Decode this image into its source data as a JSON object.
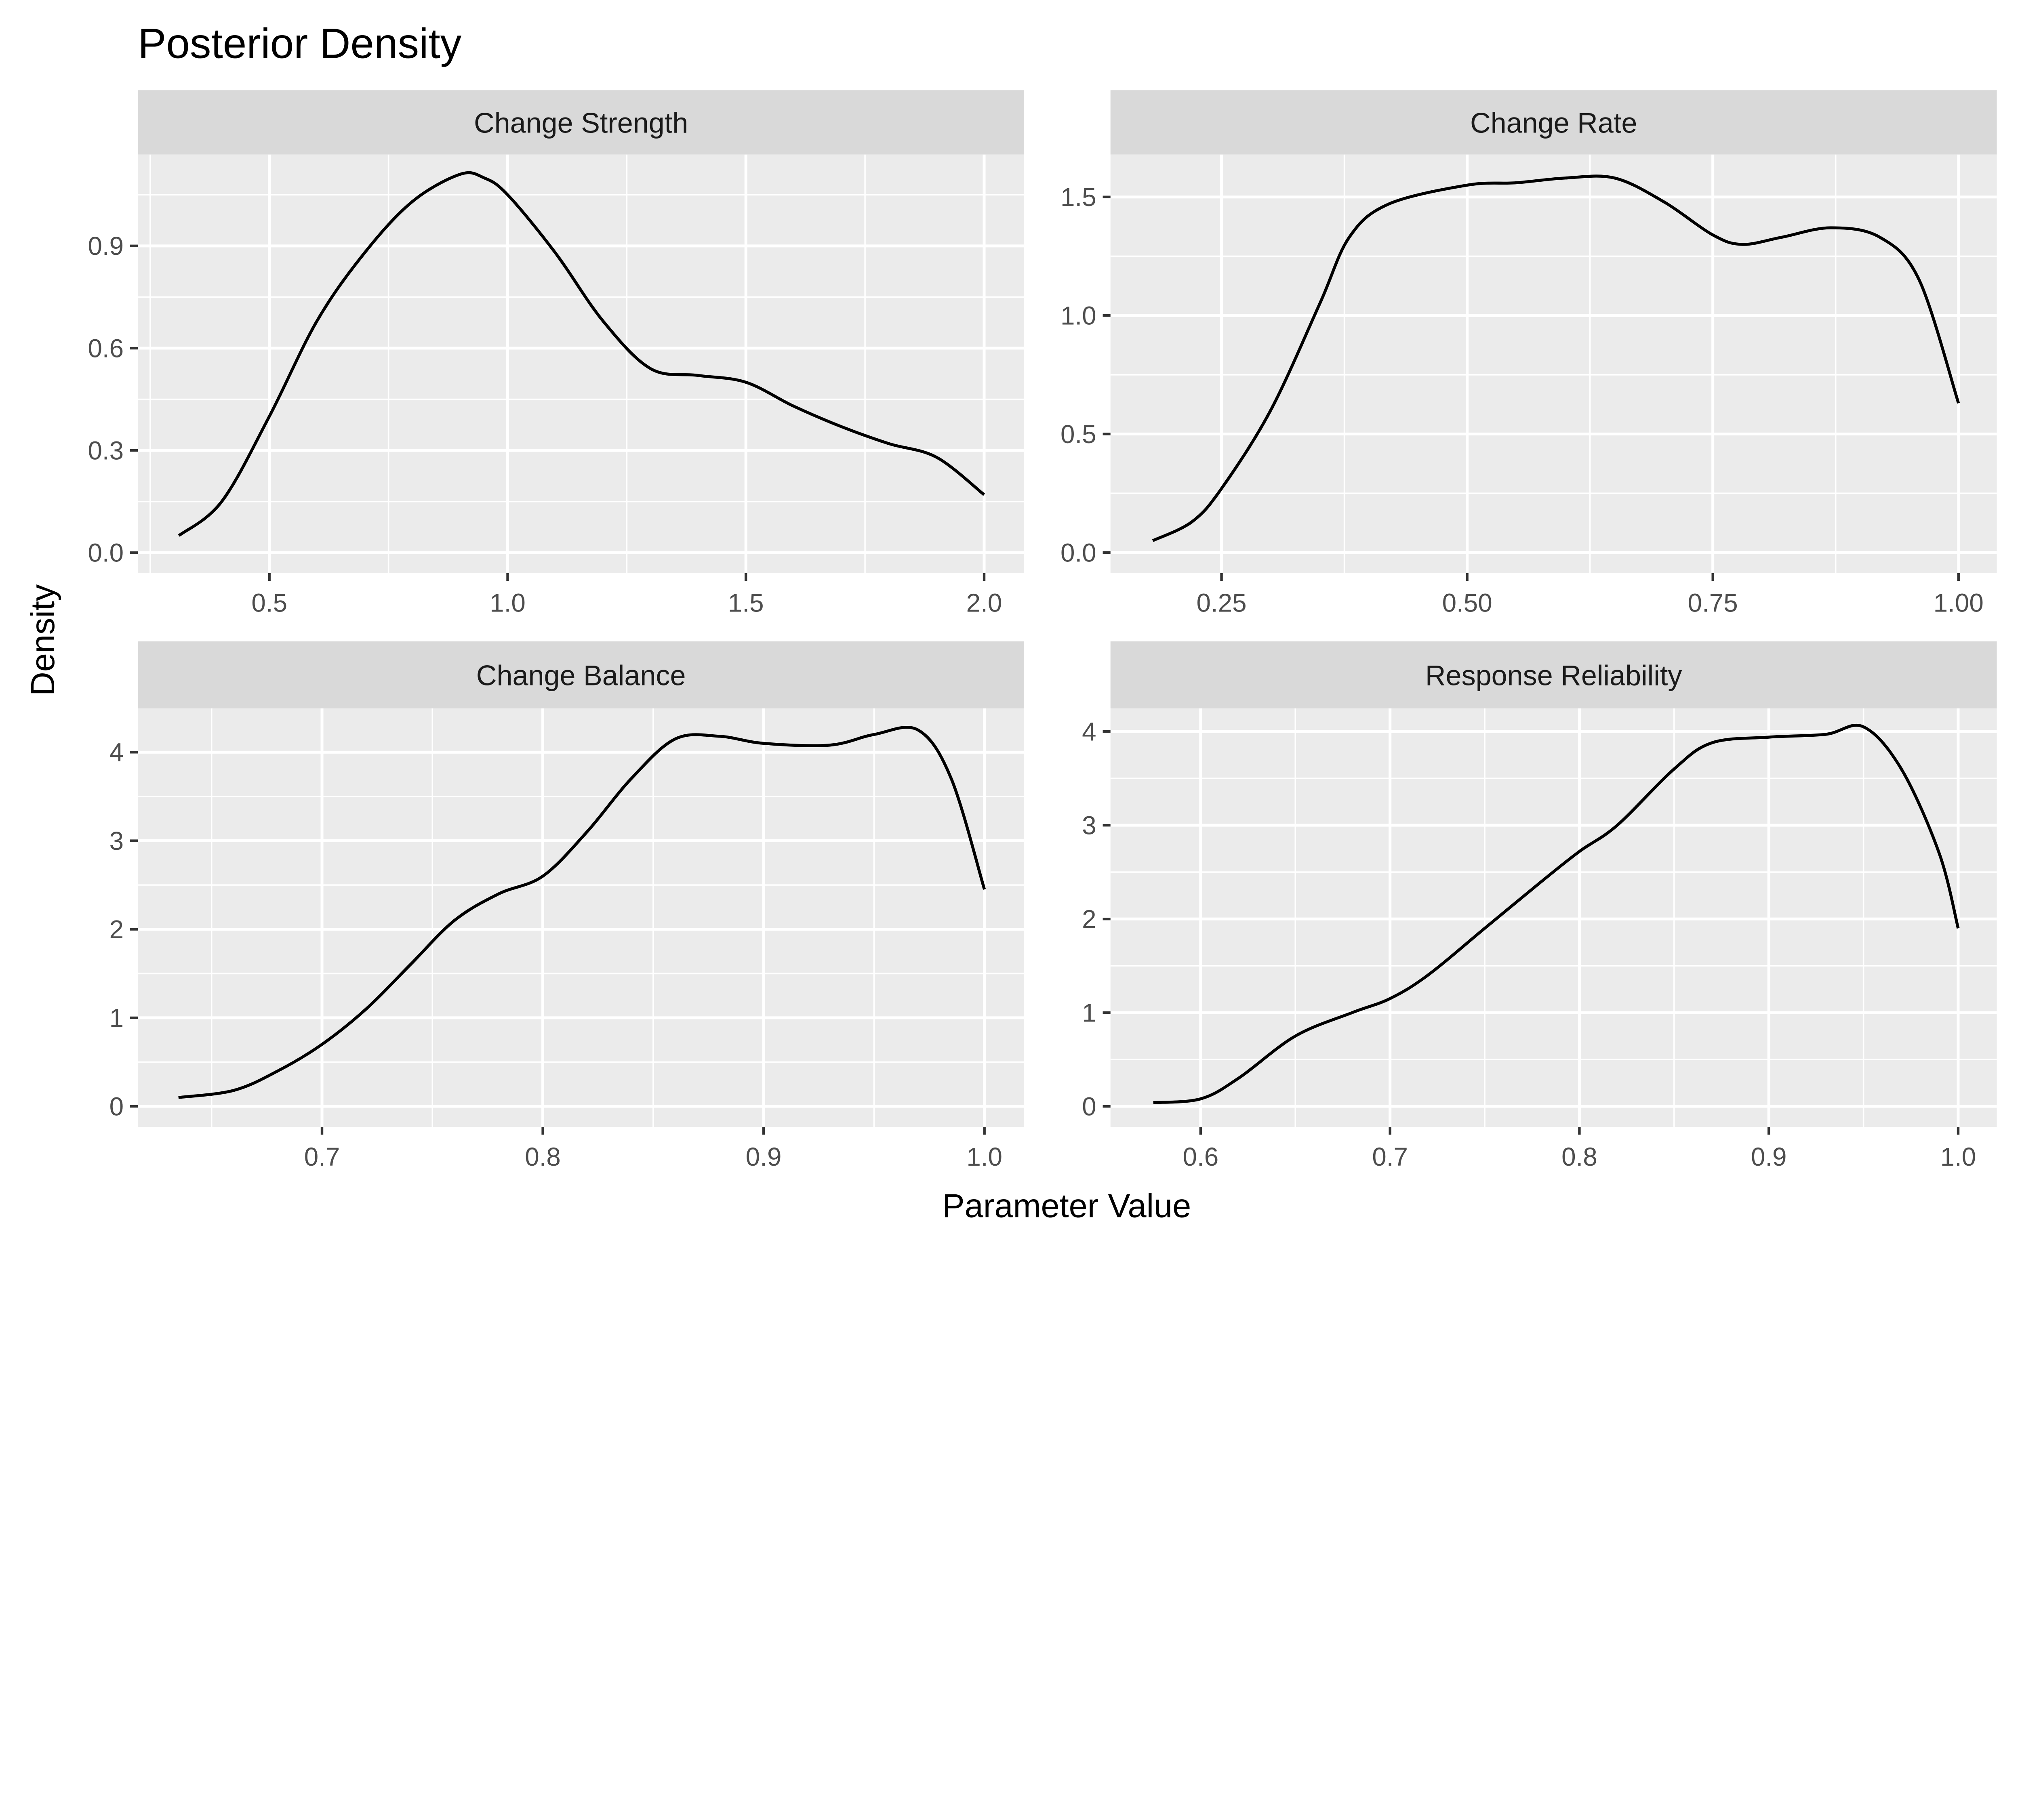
{
  "chart_data": {
    "title": "Posterior Density",
    "xlabel": "Parameter Value",
    "ylabel": "Density",
    "grid": true,
    "panels": [
      {
        "type": "line",
        "strip": "Change Strength",
        "xlim": [
          0.224,
          2.084
        ],
        "ylim": [
          -0.06,
          1.168
        ],
        "xticks": [
          0.5,
          1.0,
          1.5,
          2.0
        ],
        "xtick_labels": [
          "0.5",
          "1.0",
          "1.5",
          "2.0"
        ],
        "yticks": [
          0.0,
          0.3,
          0.6,
          0.9
        ],
        "ytick_labels": [
          "0.0",
          "0.3",
          "0.6",
          "0.9"
        ],
        "x": [
          0.31,
          0.4,
          0.5,
          0.6,
          0.7,
          0.8,
          0.9,
          0.95,
          1.0,
          1.1,
          1.2,
          1.3,
          1.4,
          1.5,
          1.6,
          1.7,
          1.8,
          1.9,
          2.0
        ],
        "y": [
          0.05,
          0.15,
          0.4,
          0.68,
          0.88,
          1.03,
          1.11,
          1.1,
          1.05,
          0.88,
          0.68,
          0.54,
          0.52,
          0.5,
          0.43,
          0.37,
          0.32,
          0.28,
          0.17
        ]
      },
      {
        "type": "line",
        "strip": "Change Rate",
        "xlim": [
          0.137,
          1.039
        ],
        "ylim": [
          -0.087,
          1.679
        ],
        "xticks": [
          0.25,
          0.5,
          0.75,
          1.0
        ],
        "xtick_labels": [
          "0.25",
          "0.50",
          "0.75",
          "1.00"
        ],
        "yticks": [
          0.0,
          0.5,
          1.0,
          1.5
        ],
        "ytick_labels": [
          "0.0",
          "0.5",
          "1.0",
          "1.5"
        ],
        "x": [
          0.18,
          0.22,
          0.25,
          0.3,
          0.35,
          0.38,
          0.42,
          0.5,
          0.55,
          0.6,
          0.65,
          0.7,
          0.75,
          0.78,
          0.82,
          0.87,
          0.92,
          0.96,
          1.0
        ],
        "y": [
          0.05,
          0.13,
          0.27,
          0.6,
          1.05,
          1.33,
          1.47,
          1.55,
          1.56,
          1.58,
          1.58,
          1.48,
          1.34,
          1.3,
          1.33,
          1.37,
          1.33,
          1.15,
          0.63
        ]
      },
      {
        "type": "line",
        "strip": "Change Balance",
        "xlim": [
          0.6166,
          1.018
        ],
        "ylim": [
          -0.233,
          4.495
        ],
        "xticks": [
          0.7,
          0.8,
          0.9,
          1.0
        ],
        "xtick_labels": [
          "0.7",
          "0.8",
          "0.9",
          "1.0"
        ],
        "yticks": [
          0,
          1,
          2,
          3,
          4
        ],
        "ytick_labels": [
          "0",
          "1",
          "2",
          "3",
          "4"
        ],
        "x": [
          0.635,
          0.66,
          0.68,
          0.7,
          0.72,
          0.74,
          0.76,
          0.78,
          0.8,
          0.82,
          0.84,
          0.86,
          0.88,
          0.9,
          0.93,
          0.95,
          0.97,
          0.985,
          1.0
        ],
        "y": [
          0.1,
          0.18,
          0.4,
          0.7,
          1.1,
          1.6,
          2.1,
          2.4,
          2.6,
          3.1,
          3.7,
          4.15,
          4.18,
          4.1,
          4.08,
          4.2,
          4.25,
          3.7,
          2.45
        ]
      },
      {
        "type": "line",
        "strip": "Response Reliability",
        "xlim": [
          0.5524,
          1.0204
        ],
        "ylim": [
          -0.22,
          4.247
        ],
        "xticks": [
          0.6,
          0.7,
          0.8,
          0.9,
          1.0
        ],
        "xtick_labels": [
          "0.6",
          "0.7",
          "0.8",
          "0.9",
          "1.0"
        ],
        "yticks": [
          0,
          1,
          2,
          3,
          4
        ],
        "ytick_labels": [
          "0",
          "1",
          "2",
          "3",
          "4"
        ],
        "x": [
          0.575,
          0.6,
          0.62,
          0.65,
          0.68,
          0.7,
          0.72,
          0.75,
          0.78,
          0.8,
          0.82,
          0.85,
          0.87,
          0.9,
          0.93,
          0.95,
          0.97,
          0.99,
          1.0
        ],
        "y": [
          0.04,
          0.08,
          0.3,
          0.75,
          1.0,
          1.15,
          1.4,
          1.9,
          2.4,
          2.72,
          3.0,
          3.6,
          3.88,
          3.94,
          3.97,
          4.05,
          3.6,
          2.7,
          1.9
        ]
      }
    ]
  }
}
